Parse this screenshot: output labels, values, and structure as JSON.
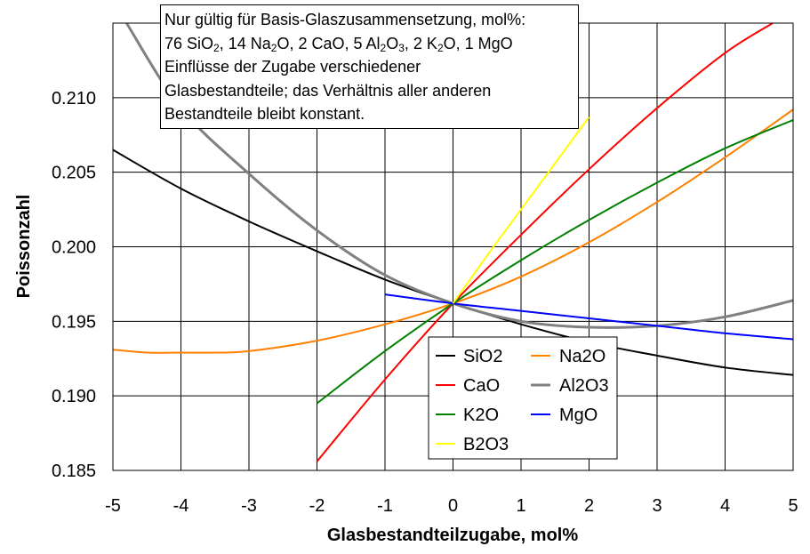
{
  "note": {
    "line1": "Nur gültig für Basis-Glaszusammensetzung, mol%:",
    "line2": "76 SiO₂, 14 Na₂O, 2 CaO, 5 Al₂O₃, 2 K₂O, 1 MgO",
    "line2_parts": [
      {
        "t": "76 SiO"
      },
      {
        "s": "2"
      },
      {
        "t": ", 14 Na"
      },
      {
        "s": "2"
      },
      {
        "t": "O, 2 CaO, 5 Al"
      },
      {
        "s": "2"
      },
      {
        "t": "O"
      },
      {
        "s": "3"
      },
      {
        "t": ", 2 K"
      },
      {
        "s": "2"
      },
      {
        "t": "O, 1 MgO"
      }
    ],
    "line3": "Einflüsse der Zugabe verschiedener",
    "line4": "Glasbestandteile; das Verhältnis aller anderen",
    "line5": "Bestandteile bleibt konstant."
  },
  "chart_data": {
    "type": "line",
    "xlabel": "Glasbestandteilzugabe, mol%",
    "ylabel": "Poissonzahl",
    "xlim": [
      -5,
      5
    ],
    "ylim": [
      0.185,
      0.215
    ],
    "xticks": [
      -5,
      -4,
      -3,
      -2,
      -1,
      0,
      1,
      2,
      3,
      4,
      5
    ],
    "xtick_labels": [
      "-5",
      "-4",
      "-3",
      "-2",
      "-1",
      "0",
      "1",
      "2",
      "3",
      "4",
      "5"
    ],
    "yticks": [
      0.185,
      0.19,
      0.195,
      0.2,
      0.205,
      0.21
    ],
    "ytick_labels": [
      "0.185",
      "0.190",
      "0.195",
      "0.200",
      "0.205",
      "0.210"
    ],
    "grid": true,
    "legend_position": "bottom-center",
    "series": [
      {
        "name": "SiO2",
        "color": "#000000",
        "x": [
          -5,
          -4,
          -3,
          -2,
          -1,
          0,
          1,
          2,
          3,
          4,
          5
        ],
        "y": [
          0.2065,
          0.2039,
          0.2017,
          0.1997,
          0.1978,
          0.1962,
          0.1948,
          0.1936,
          0.1927,
          0.1919,
          0.1914
        ]
      },
      {
        "name": "Na2O",
        "color": "#ff7f00",
        "x": [
          -5,
          -4.5,
          -4,
          -3.5,
          -3,
          -2,
          -1,
          0,
          1,
          2,
          3,
          4,
          5
        ],
        "y": [
          0.1931,
          0.1929,
          0.1929,
          0.1929,
          0.193,
          0.1937,
          0.1948,
          0.1962,
          0.198,
          0.2003,
          0.203,
          0.206,
          0.2092
        ]
      },
      {
        "name": "CaO",
        "color": "#ff0000",
        "x": [
          -2,
          -1,
          0,
          1,
          2,
          3,
          4,
          4.7
        ],
        "y": [
          0.1856,
          0.1911,
          0.1962,
          0.2008,
          0.2052,
          0.2093,
          0.213,
          0.215
        ]
      },
      {
        "name": "Al2O3",
        "color": "#808080",
        "x": [
          -4.8,
          -4,
          -3,
          -2,
          -1,
          0,
          1,
          2,
          3,
          4,
          5
        ],
        "y": [
          0.215,
          0.2093,
          0.2049,
          0.2011,
          0.1981,
          0.1962,
          0.195,
          0.1946,
          0.1947,
          0.1953,
          0.1964
        ]
      },
      {
        "name": "K2O",
        "color": "#008000",
        "x": [
          -2,
          -1,
          0,
          1,
          2,
          3,
          4,
          5
        ],
        "y": [
          0.1895,
          0.193,
          0.1962,
          0.1991,
          0.2018,
          0.2043,
          0.2066,
          0.2085
        ]
      },
      {
        "name": "MgO",
        "color": "#0000ff",
        "x": [
          -1,
          0,
          1,
          2,
          3,
          4,
          5
        ],
        "y": [
          0.1968,
          0.1962,
          0.1957,
          0.1952,
          0.1947,
          0.1942,
          0.1938
        ]
      },
      {
        "name": "B2O3",
        "color": "#ffff00",
        "x": [
          0,
          0.5,
          1,
          1.5,
          2
        ],
        "y": [
          0.1962,
          0.1994,
          0.2025,
          0.2056,
          0.2087
        ]
      }
    ]
  }
}
